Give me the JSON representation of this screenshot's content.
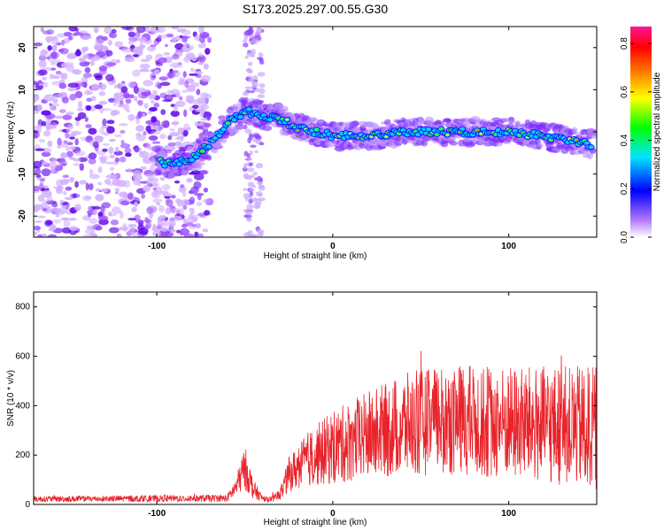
{
  "title": "S173.2025.297.00.55.G30",
  "chart_data": [
    {
      "type": "heatmap",
      "name": "spectrogram",
      "xlabel": "Height of straight line (km)",
      "ylabel": "Frequency (Hz)",
      "xlim": [
        -170,
        150
      ],
      "ylim": [
        -25,
        25
      ],
      "xticks": [
        -100,
        0,
        100
      ],
      "xtick_labels": [
        "-100",
        "0",
        "100"
      ],
      "yticks": [
        -20,
        -10,
        0,
        10,
        20
      ],
      "ytick_labels": [
        "-20",
        "-10",
        "0",
        "10",
        "20"
      ],
      "colorbar": {
        "label": "Normalized spectral amplitude",
        "range": [
          0,
          0.87
        ],
        "ticks": [
          0,
          0.2,
          0.4,
          0.6,
          0.8
        ],
        "tick_labels": [
          "0.0",
          "0.2",
          "0.4",
          "0.6",
          "0.8"
        ],
        "colors": [
          "#ffffff",
          "#9b30ff",
          "#0000ff",
          "#00e5ff",
          "#00ff00",
          "#ffff00",
          "#ff8000",
          "#ff0000",
          "#ff1493"
        ]
      },
      "ridge": {
        "description": "doppler trace frequency vs height",
        "x": [
          -100,
          -90,
          -80,
          -70,
          -60,
          -50,
          -40,
          -30,
          -20,
          -10,
          0,
          20,
          40,
          60,
          80,
          100,
          120,
          148
        ],
        "y": [
          -7,
          -8,
          -6,
          -3,
          2,
          5,
          4,
          3,
          1,
          0,
          -1,
          -1,
          0,
          0,
          0,
          0,
          -1,
          -3
        ]
      },
      "noise_region_x": [
        -170,
        -80
      ],
      "vertical_band_x": -45
    },
    {
      "type": "line",
      "name": "snr",
      "xlabel": "Height of straight line (km)",
      "ylabel": "SNR (10 * v/v)",
      "xlim": [
        -170,
        150
      ],
      "ylim": [
        0,
        860
      ],
      "xticks": [
        -100,
        0,
        100
      ],
      "xtick_labels": [
        "-100",
        "0",
        "100"
      ],
      "yticks": [
        0,
        200,
        400,
        600,
        800
      ],
      "ytick_labels": [
        "0",
        "200",
        "400",
        "600",
        "800"
      ],
      "color": "#e8232a",
      "envelope": {
        "x": [
          -170,
          -60,
          -55,
          -50,
          -45,
          -40,
          -35,
          -30,
          -25,
          -15,
          0,
          20,
          40,
          60,
          80,
          100,
          120,
          148
        ],
        "mean": [
          22,
          25,
          70,
          150,
          60,
          25,
          20,
          40,
          120,
          180,
          230,
          280,
          320,
          340,
          340,
          330,
          320,
          310
        ],
        "spread": [
          12,
          15,
          40,
          90,
          40,
          12,
          10,
          25,
          70,
          110,
          150,
          180,
          210,
          220,
          230,
          230,
          240,
          250
        ]
      }
    }
  ]
}
